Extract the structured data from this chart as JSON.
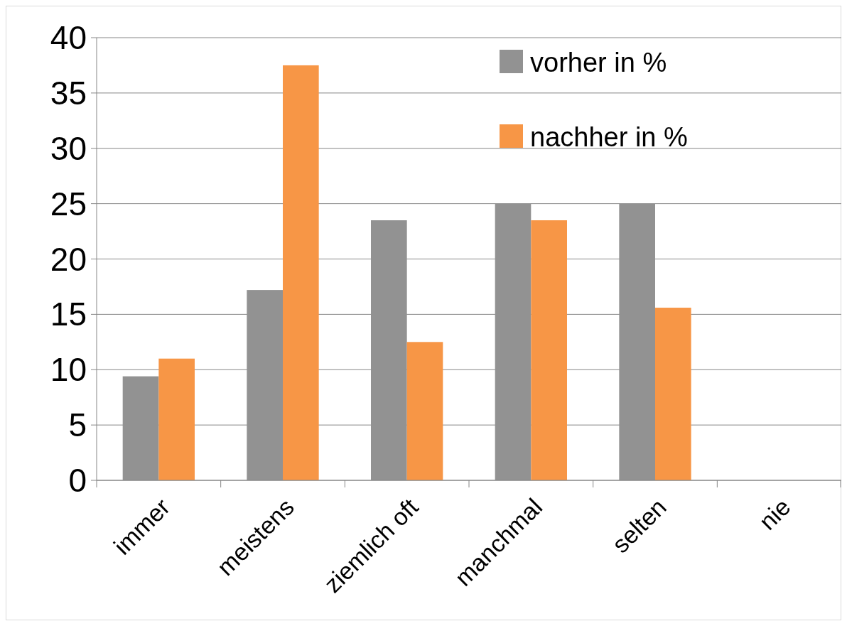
{
  "chart_data": {
    "type": "bar",
    "categories": [
      "immer",
      "meistens",
      "ziemlich oft",
      "manchmal",
      "selten",
      "nie"
    ],
    "series": [
      {
        "name": "vorher in %",
        "color": "#929292",
        "values": [
          9.4,
          17.2,
          23.5,
          25,
          25,
          0
        ]
      },
      {
        "name": "nachher in %",
        "color": "#f79646",
        "values": [
          11,
          37.5,
          12.5,
          23.5,
          15.6,
          0
        ]
      }
    ],
    "ylim": [
      0,
      40
    ],
    "yticks": [
      0,
      5,
      10,
      15,
      20,
      25,
      30,
      35,
      40
    ],
    "grid": "y",
    "legend": "top right"
  }
}
